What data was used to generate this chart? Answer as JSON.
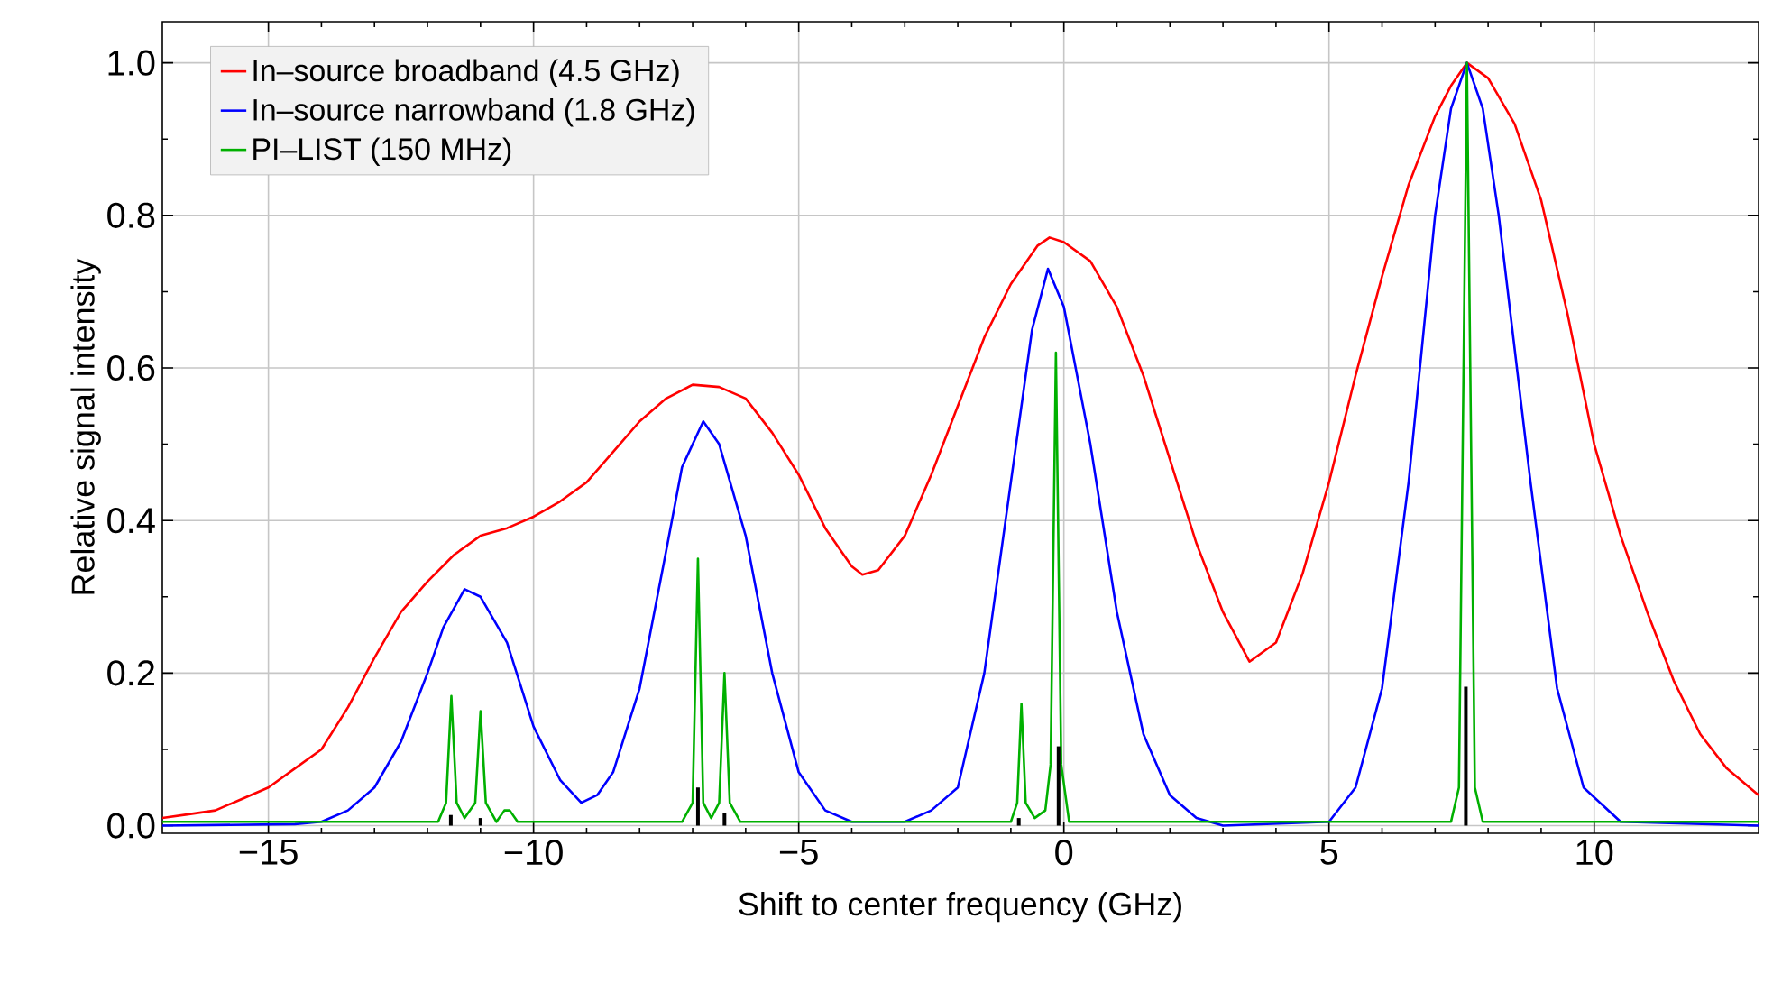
{
  "chart_data": {
    "type": "line",
    "xlabel": "Shift to center frequency (GHz)",
    "ylabel": "Relative signal intensity",
    "xlim": [
      -17,
      13.1
    ],
    "ylim": [
      -0.01,
      1.054
    ],
    "xticks": [
      {
        "value": -15,
        "label": "−15"
      },
      {
        "value": -10,
        "label": "−10"
      },
      {
        "value": -5,
        "label": "−5"
      },
      0,
      5,
      10
    ],
    "yticks": [
      {
        "value": 0,
        "label": "0.0"
      },
      {
        "value": 0.2,
        "label": "0.2"
      },
      {
        "value": 0.4,
        "label": "0.4"
      },
      {
        "value": 0.6,
        "label": "0.6"
      },
      {
        "value": 0.8,
        "label": "0.8"
      },
      {
        "value": 1,
        "label": "1.0"
      }
    ],
    "grid": true,
    "legend": "top left",
    "marker": "none",
    "line_style": "solid",
    "series": [
      {
        "name": "In–source broadband (4.5 GHz)",
        "color": "#ff0000",
        "x": [
          -17,
          -16.5,
          -16,
          -15.5,
          -15,
          -14.5,
          -14,
          -13.5,
          -13,
          -12.5,
          -12,
          -11.5,
          -11,
          -10.5,
          -10,
          -9.5,
          -9,
          -8.5,
          -8,
          -7.5,
          -7,
          -6.5,
          -6,
          -5.5,
          -5,
          -4.5,
          -4,
          -3.8,
          -3.5,
          -3,
          -2.5,
          -2,
          -1.5,
          -1,
          -0.5,
          -0.27,
          0,
          0.5,
          1,
          1.5,
          2,
          2.5,
          3,
          3.5,
          4,
          4.5,
          5,
          5.5,
          6,
          6.5,
          7,
          7.3,
          7.6,
          8,
          8.5,
          9,
          9.5,
          10,
          10.5,
          11,
          11.5,
          12,
          12.5,
          13.1
        ],
        "values": [
          0.01,
          0.015,
          0.02,
          0.035,
          0.05,
          0.075,
          0.1,
          0.155,
          0.22,
          0.28,
          0.32,
          0.355,
          0.38,
          0.39,
          0.405,
          0.425,
          0.45,
          0.49,
          0.53,
          0.56,
          0.578,
          0.575,
          0.56,
          0.515,
          0.46,
          0.39,
          0.34,
          0.329,
          0.335,
          0.38,
          0.46,
          0.55,
          0.64,
          0.71,
          0.76,
          0.771,
          0.765,
          0.74,
          0.68,
          0.59,
          0.48,
          0.37,
          0.28,
          0.215,
          0.24,
          0.33,
          0.45,
          0.59,
          0.72,
          0.84,
          0.93,
          0.97,
          1.0,
          0.98,
          0.92,
          0.82,
          0.67,
          0.5,
          0.38,
          0.28,
          0.19,
          0.12,
          0.075,
          0.04
        ]
      },
      {
        "name": "In–source narrowband (1.8 GHz)",
        "color": "#0000ff",
        "x": [
          -17,
          -14.5,
          -14,
          -13.5,
          -13,
          -12.5,
          -12,
          -11.7,
          -11.3,
          -11,
          -10.5,
          -10,
          -9.5,
          -9.1,
          -8.8,
          -8.5,
          -8,
          -7.5,
          -7.2,
          -6.8,
          -6.5,
          -6,
          -5.5,
          -5,
          -4.5,
          -4,
          -3,
          -2.5,
          -2,
          -1.5,
          -1,
          -0.6,
          -0.3,
          0,
          0.5,
          1,
          1.5,
          2,
          2.5,
          3,
          5,
          5.5,
          6,
          6.5,
          7,
          7.3,
          7.6,
          7.9,
          8.2,
          8.8,
          9.3,
          9.8,
          10.5,
          13.1
        ],
        "values": [
          0,
          0.002,
          0.005,
          0.02,
          0.05,
          0.11,
          0.2,
          0.26,
          0.31,
          0.3,
          0.24,
          0.13,
          0.06,
          0.03,
          0.04,
          0.07,
          0.18,
          0.36,
          0.47,
          0.53,
          0.5,
          0.38,
          0.2,
          0.07,
          0.02,
          0.005,
          0.005,
          0.02,
          0.05,
          0.2,
          0.45,
          0.65,
          0.73,
          0.68,
          0.5,
          0.28,
          0.12,
          0.04,
          0.01,
          0,
          0.005,
          0.05,
          0.18,
          0.45,
          0.8,
          0.94,
          1.0,
          0.94,
          0.8,
          0.45,
          0.18,
          0.05,
          0.005,
          0
        ]
      },
      {
        "name": "PI–LIST (150 MHz)",
        "color": "#00b000",
        "x": [
          -17,
          -11.8,
          -11.65,
          -11.55,
          -11.45,
          -11.3,
          -11.1,
          -11.0,
          -10.9,
          -10.7,
          -10.55,
          -10.45,
          -10.3,
          -7.2,
          -7.0,
          -6.9,
          -6.8,
          -6.65,
          -6.5,
          -6.4,
          -6.3,
          -6.1,
          -1.0,
          -0.88,
          -0.8,
          -0.72,
          -0.55,
          -0.35,
          -0.25,
          -0.15,
          -0.05,
          0.1,
          7.3,
          7.45,
          7.6,
          7.75,
          7.9,
          13.1
        ],
        "values": [
          0.005,
          0.005,
          0.03,
          0.17,
          0.03,
          0.01,
          0.03,
          0.15,
          0.03,
          0.005,
          0.02,
          0.02,
          0.005,
          0.005,
          0.03,
          0.35,
          0.03,
          0.01,
          0.03,
          0.2,
          0.03,
          0.005,
          0.005,
          0.03,
          0.16,
          0.03,
          0.01,
          0.02,
          0.08,
          0.62,
          0.08,
          0.005,
          0.005,
          0.05,
          1.0,
          0.05,
          0.005,
          0.005
        ]
      },
      {
        "type": "bar",
        "color": "#000000",
        "x": [
          -11.56,
          -11.0,
          -6.9,
          -6.4,
          -0.85,
          -0.1,
          7.58
        ],
        "values": [
          0.014,
          0.01,
          0.05,
          0.017,
          0.01,
          0.104,
          0.182
        ]
      }
    ]
  }
}
